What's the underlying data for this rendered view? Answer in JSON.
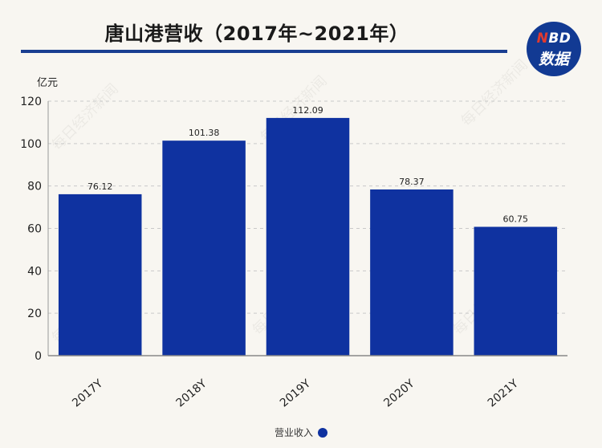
{
  "header": {
    "title": "唐山港营收（2017年~2021年）",
    "logo_line1_accent": "N",
    "logo_line1_rest": "BD",
    "logo_line2": "数据"
  },
  "watermark": "每日经济新闻",
  "colors": {
    "bar": "#0f32a0",
    "title_rule": "#1a3e91",
    "logo": "#123a93",
    "logo_accent": "#e03a2f"
  },
  "chart_data": {
    "type": "bar",
    "title": "唐山港营收（2017年~2021年）",
    "ylabel": "亿元",
    "xlabel": "",
    "categories": [
      "2017Y",
      "2018Y",
      "2019Y",
      "2020Y",
      "2021Y"
    ],
    "series": [
      {
        "name": "营业收入",
        "values": [
          76.12,
          101.38,
          112.09,
          78.37,
          60.75
        ]
      }
    ],
    "data_labels": [
      "76.12",
      "101.38",
      "112.09",
      "78.37",
      "60.75"
    ],
    "ylim": [
      0,
      120
    ],
    "yticks": [
      0,
      20,
      40,
      60,
      80,
      100,
      120
    ],
    "grid": true,
    "legend_position": "bottom-center"
  }
}
